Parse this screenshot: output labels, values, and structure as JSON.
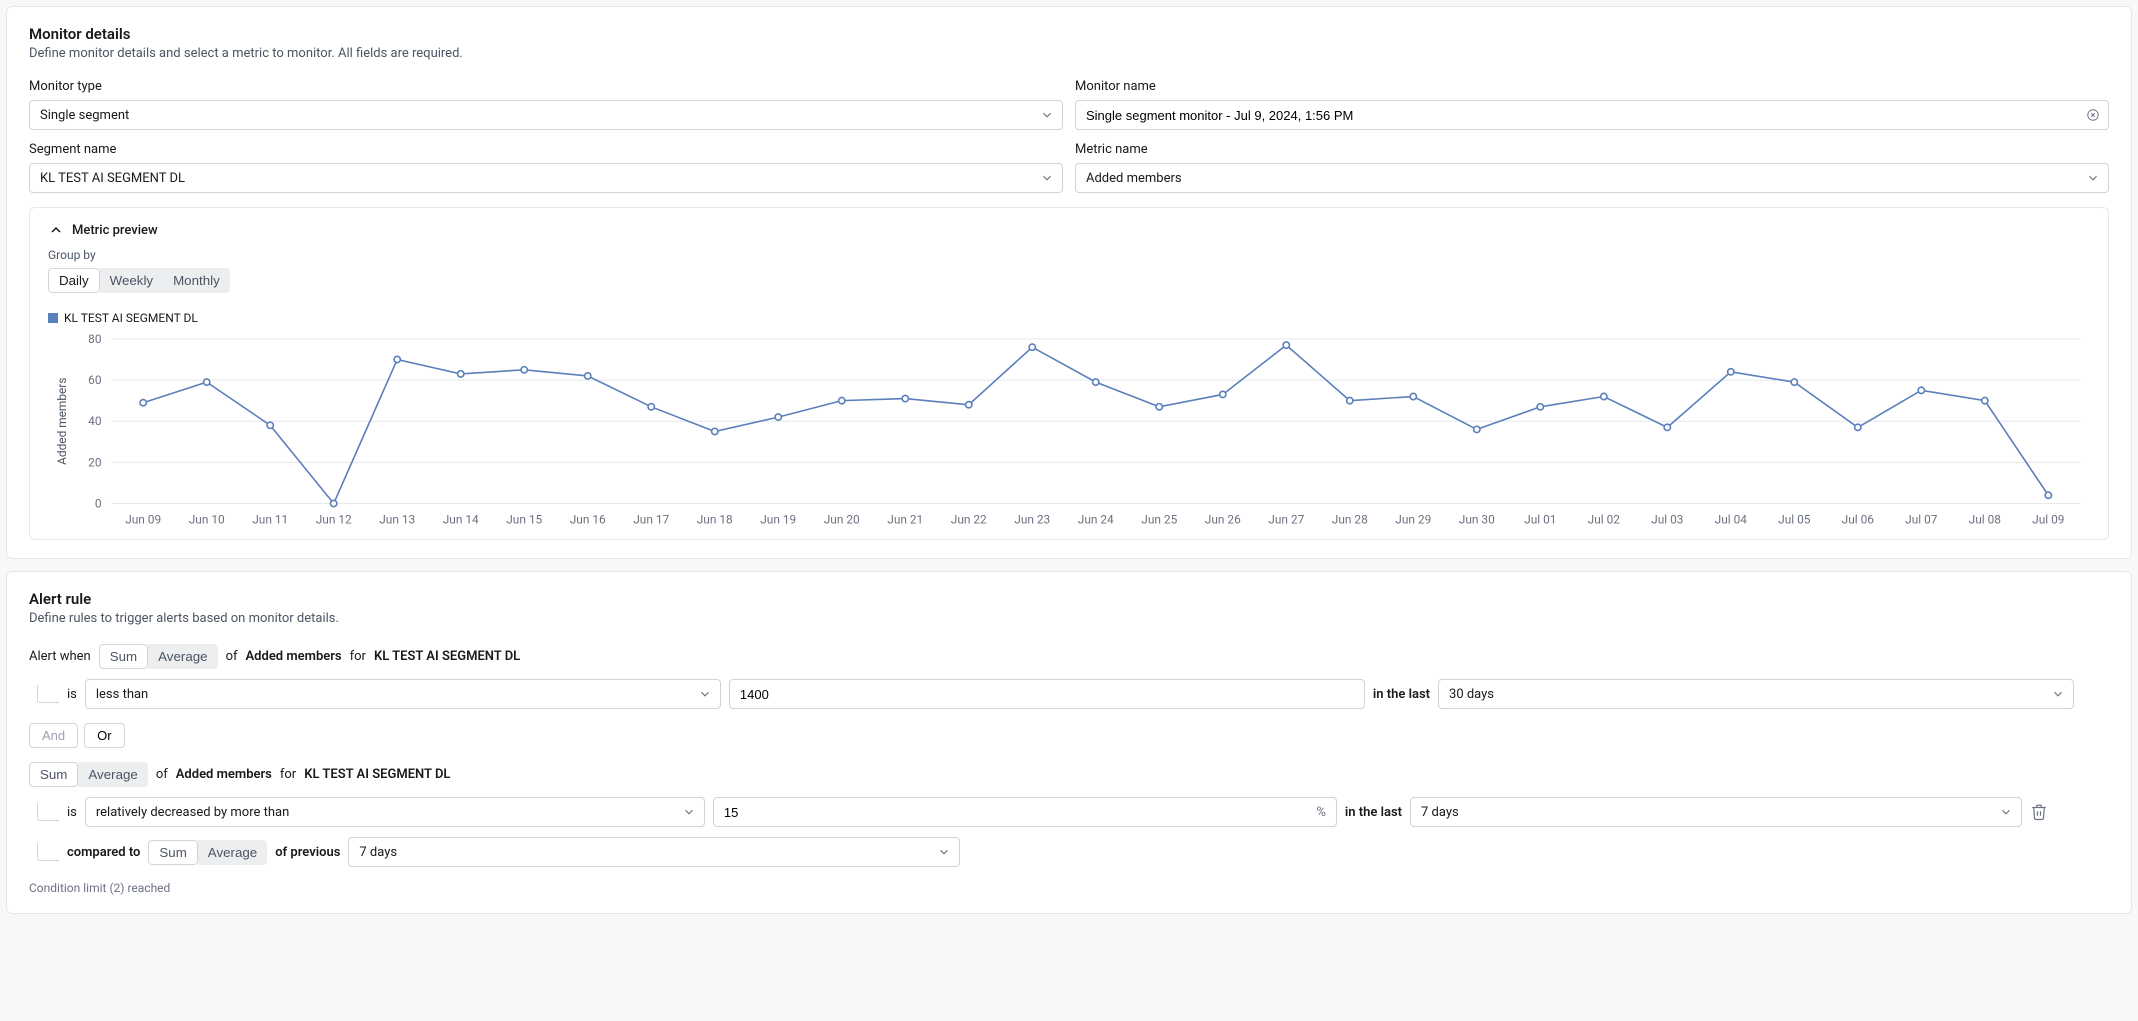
{
  "monitor_details": {
    "title": "Monitor details",
    "subtitle": "Define monitor details and select a metric to monitor. All fields are required.",
    "monitor_type": {
      "label": "Monitor type",
      "value": "Single segment"
    },
    "monitor_name": {
      "label": "Monitor name",
      "value": "Single segment monitor - Jul 9, 2024, 1:56 PM"
    },
    "segment_name": {
      "label": "Segment name",
      "value": "KL TEST AI SEGMENT DL"
    },
    "metric_name": {
      "label": "Metric name",
      "value": "Added members"
    }
  },
  "metric_preview": {
    "title": "Metric preview",
    "group_by_label": "Group by",
    "group_by_options": [
      "Daily",
      "Weekly",
      "Monthly"
    ],
    "group_by_selected": "Daily",
    "legend_series": "KL TEST AI SEGMENT DL",
    "y_axis_label": "Added members",
    "y_ticks": [
      0,
      20,
      40,
      60,
      80
    ],
    "ylim": [
      0,
      80
    ],
    "x_categories": [
      "Jun 09",
      "Jun 10",
      "Jun 11",
      "Jun 12",
      "Jun 13",
      "Jun 14",
      "Jun 15",
      "Jun 16",
      "Jun 17",
      "Jun 18",
      "Jun 19",
      "Jun 20",
      "Jun 21",
      "Jun 22",
      "Jun 23",
      "Jun 24",
      "Jun 25",
      "Jun 26",
      "Jun 27",
      "Jun 28",
      "Jun 29",
      "Jun 30",
      "Jul 01",
      "Jul 02",
      "Jul 03",
      "Jul 04",
      "Jul 05",
      "Jul 06",
      "Jul 07",
      "Jul 08",
      "Jul 09"
    ],
    "values": [
      49,
      59,
      38,
      0,
      70,
      63,
      65,
      62,
      47,
      35,
      42,
      50,
      51,
      48,
      76,
      59,
      47,
      53,
      77,
      50,
      52,
      36,
      47,
      52,
      37,
      64,
      59,
      37,
      55,
      50,
      4
    ],
    "line_color": "#5b7fbb",
    "point_fill": "#ffffff",
    "grid_color": "#e5e7eb",
    "background": "#ffffff"
  },
  "alert_rule": {
    "title": "Alert rule",
    "subtitle": "Define rules to trigger alerts based on monitor details.",
    "alert_when_text": "Alert when",
    "of_text": "of",
    "metric_phrase_a": "Added members",
    "for_text": "for",
    "metric_phrase_b": "KL TEST AI SEGMENT DL",
    "sum_avg_options": [
      "Sum",
      "Average"
    ],
    "cond1": {
      "selected": "Sum",
      "is_text": "is",
      "operator": "less than",
      "value": "1400",
      "in_the_last_text": "in the last",
      "window": "30 days"
    },
    "logic": {
      "and": "And",
      "or": "Or"
    },
    "cond2": {
      "selected": "Sum",
      "of_text": "of",
      "metric_a": "Added members",
      "for_text": "for",
      "metric_b": "KL TEST AI SEGMENT DL",
      "is_text": "is",
      "operator": "relatively decreased by more than",
      "value": "15",
      "pct": "%",
      "in_the_last_text": "in the last",
      "window": "7 days",
      "compared_to_text": "compared to",
      "compared_selected": "Sum",
      "of_previous_text": "of previous",
      "prev_window": "7 days"
    },
    "limit_note": "Condition limit (2) reached"
  }
}
